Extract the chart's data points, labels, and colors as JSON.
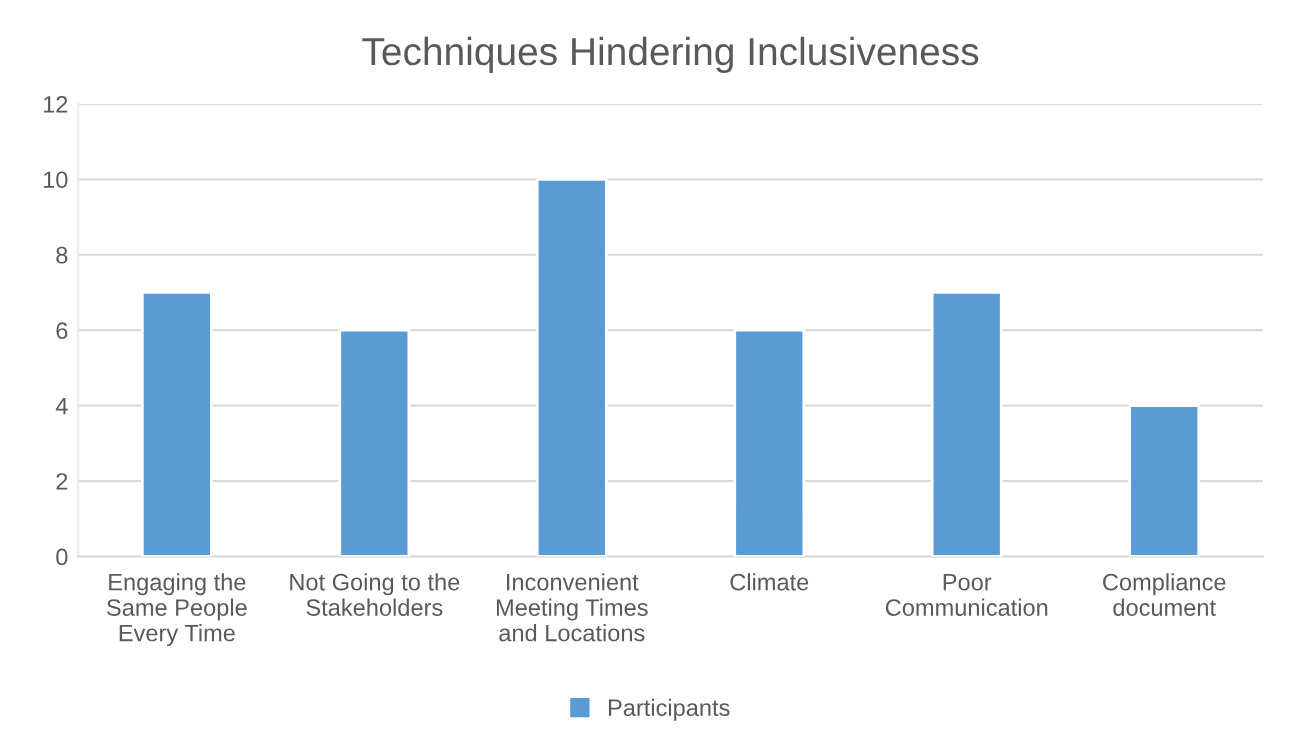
{
  "chart_data": {
    "type": "bar",
    "title": "Techniques Hindering Inclusiveness",
    "categories": [
      "Engaging the\nSame People\nEvery Time",
      "Not Going to the\nStakeholders",
      "Inconvenient\nMeeting Times\nand Locations",
      "Climate",
      "Poor\nCommunication",
      "Compliance\ndocument"
    ],
    "series": [
      {
        "name": "Participants",
        "color": "#5b9bd5",
        "values": [
          7,
          6,
          10,
          6,
          7,
          4
        ]
      }
    ],
    "ylim": [
      0,
      12
    ],
    "yticks": [
      0,
      2,
      4,
      6,
      8,
      10,
      12
    ],
    "grid": "y",
    "legend": "bottom"
  }
}
